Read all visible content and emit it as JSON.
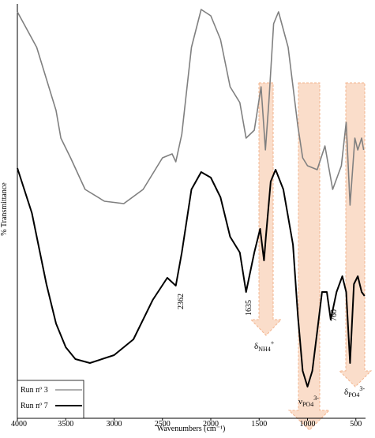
{
  "chart_data": {
    "type": "line",
    "x_label": "Wavenumbers (cm⁻¹)",
    "y_label": "% Transmittance",
    "xlim": [
      4000,
      400
    ],
    "xticks": [
      4000,
      3500,
      3000,
      2500,
      2000,
      1500,
      1000,
      500
    ],
    "ylim": [
      0,
      105
    ],
    "x_reversed": true,
    "series": [
      {
        "name": "Run nº 3",
        "color": "#808080",
        "x": [
          4000,
          3800,
          3600,
          3550,
          3450,
          3300,
          3100,
          2900,
          2700,
          2500,
          2400,
          2362,
          2300,
          2200,
          2100,
          2000,
          1900,
          1800,
          1700,
          1635,
          1550,
          1480,
          1435,
          1400,
          1350,
          1300,
          1200,
          1100,
          1050,
          1000,
          900,
          820,
          740,
          650,
          600,
          560,
          510,
          480,
          440,
          420
        ],
        "values": [
          103,
          94,
          78,
          71,
          66,
          58,
          55,
          54.4,
          58,
          66,
          67,
          65,
          72,
          94,
          103.6,
          102,
          96,
          84,
          80,
          71,
          73,
          84,
          68,
          80,
          100,
          103,
          94,
          74,
          66,
          64,
          63,
          69,
          58,
          64,
          75,
          54,
          71,
          68,
          71,
          68
        ]
      },
      {
        "name": "Run nº 7",
        "color": "#000000",
        "x": [
          4000,
          3850,
          3700,
          3600,
          3500,
          3400,
          3250,
          3000,
          2800,
          2600,
          2450,
          2362,
          2300,
          2200,
          2100,
          2000,
          1900,
          1800,
          1700,
          1635,
          1550,
          1490,
          1450,
          1430,
          1380,
          1330,
          1250,
          1150,
          1100,
          1050,
          1000,
          950,
          900,
          850,
          800,
          760,
          700,
          640,
          600,
          560,
          520,
          480,
          440,
          410
        ],
        "values": [
          63.4,
          52,
          34,
          24,
          18,
          15,
          14,
          16,
          20,
          30,
          35.6,
          33.6,
          42,
          58,
          62.4,
          61,
          56,
          46,
          42,
          32,
          42,
          48,
          40,
          46,
          60,
          63,
          58,
          44,
          26,
          12,
          8,
          12,
          22,
          32,
          32,
          25,
          32,
          36,
          32,
          14,
          34,
          36,
          32,
          31
        ]
      }
    ],
    "peak_labels": [
      "2362",
      "1635",
      "760"
    ],
    "band_labels": [
      {
        "symbol": "δ",
        "sub": "NH4",
        "sup": "+"
      },
      {
        "symbol": "ν",
        "sub": "PO4",
        "sup": "3-"
      },
      {
        "symbol": "δ",
        "sub": "PO4",
        "sup": "3-"
      }
    ]
  }
}
